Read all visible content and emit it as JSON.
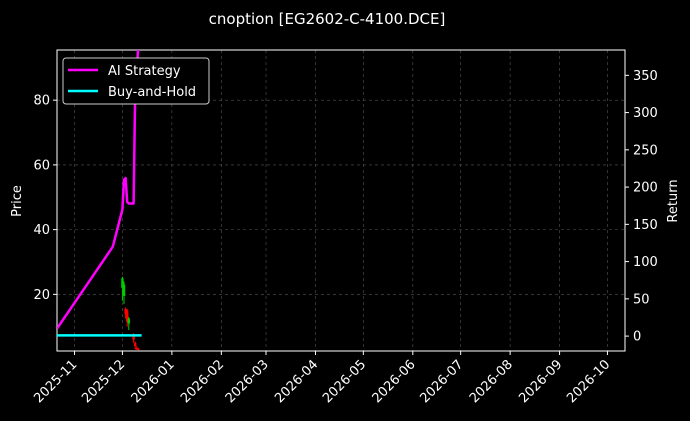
{
  "chart_data": {
    "type": "line",
    "title": "cnoption [EG2602-C-4100.DCE]",
    "ylabel_left": "Price",
    "ylabel_right": "Return",
    "ylim_left": [
      2.5,
      95.5
    ],
    "ylim_right": [
      -20,
      384
    ],
    "xlim": [
      "2025-10-21",
      "2026-10-12"
    ],
    "grid": true,
    "legend_position": "upper-left",
    "x_ticks": [
      "2025-11",
      "2025-12",
      "2026-01",
      "2026-02",
      "2026-03",
      "2026-04",
      "2026-05",
      "2026-06",
      "2026-07",
      "2026-08",
      "2026-09",
      "2026-10"
    ],
    "y_ticks_left": [
      20,
      40,
      60,
      80
    ],
    "y_ticks_right": [
      0,
      50,
      100,
      150,
      200,
      250,
      300,
      350
    ],
    "series": [
      {
        "name": "AI Strategy",
        "axis": "right",
        "color": "#ff00ff",
        "x": [
          "2025-10-21",
          "2025-11-25",
          "2025-12-01",
          "2025-12-02",
          "2025-12-03",
          "2025-12-04",
          "2025-12-05",
          "2025-12-08",
          "2025-12-09",
          "2025-12-11"
        ],
        "y": [
          10,
          120,
          170,
          210,
          212,
          180,
          178,
          178,
          330,
          390
        ]
      },
      {
        "name": "Buy-and-Hold",
        "axis": "right",
        "color": "#00ffff",
        "x": [
          "2025-10-21",
          "2025-12-13"
        ],
        "y": [
          1,
          1
        ]
      }
    ],
    "candles": {
      "axis": "left",
      "up_color": "#00cc00",
      "down_color": "#ff0000",
      "items": [
        {
          "date": "2025-12-01",
          "open": 22.0,
          "close": 25.0,
          "high": 25.5,
          "low": 18.0
        },
        {
          "date": "2025-12-02",
          "open": 19.5,
          "close": 23.0,
          "high": 24.0,
          "low": 17.0
        },
        {
          "date": "2025-12-03",
          "open": 15.5,
          "close": 14.0,
          "high": 16.0,
          "low": 12.5
        },
        {
          "date": "2025-12-04",
          "open": 15.0,
          "close": 11.5,
          "high": 15.5,
          "low": 10.0
        },
        {
          "date": "2025-12-05",
          "open": 11.0,
          "close": 12.5,
          "high": 13.0,
          "low": 9.0
        },
        {
          "date": "2025-12-08",
          "open": 7.5,
          "close": 6.0,
          "high": 8.0,
          "low": 5.0
        },
        {
          "date": "2025-12-09",
          "open": 5.0,
          "close": 4.0,
          "high": 5.5,
          "low": 3.0
        },
        {
          "date": "2025-12-10",
          "open": 3.5,
          "close": 3.0,
          "high": 4.0,
          "low": 2.8
        },
        {
          "date": "2025-12-11",
          "open": 3.2,
          "close": 2.9,
          "high": 3.5,
          "low": 2.7
        }
      ]
    }
  }
}
